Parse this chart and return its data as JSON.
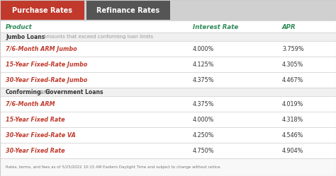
{
  "tab_active": "Purchase Rates",
  "tab_inactive": "Refinance Rates",
  "tab_active_bg": "#c0392b",
  "tab_inactive_bg": "#555555",
  "tab_text_color": "#ffffff",
  "header_product": "Product",
  "header_interest": "Interest Rate",
  "header_apr": "APR",
  "header_color": "#2e8b57",
  "section1_label": "Jumbo Loans",
  "section1_desc": "- Amounts that exceed conforming loan limits",
  "section2_label": "Conforming",
  "section2_and": " and ",
  "section2_label2": "Government Loans",
  "section_bg": "#f0f0f0",
  "row_bg_normal": "#ffffff",
  "product_color": "#c0392b",
  "footer_text": "Rates, terms, and fees as of 5/25/2022 10:15 AM Eastern Daylight Time and subject to change without notice.",
  "footer_bg": "#f8f8f8",
  "products": [
    {
      "name": "7/6-Month ARM Jumbo",
      "interest": "4.000%",
      "apr": "3.759%",
      "section": 1
    },
    {
      "name": "15-Year Fixed-Rate Jumbo",
      "interest": "4.125%",
      "apr": "4.305%",
      "section": 1
    },
    {
      "name": "30-Year Fixed-Rate Jumbo",
      "interest": "4.375%",
      "apr": "4.467%",
      "section": 1
    },
    {
      "name": "7/6-Month ARM",
      "interest": "4.375%",
      "apr": "4.019%",
      "section": 2
    },
    {
      "name": "15-Year Fixed Rate",
      "interest": "4.000%",
      "apr": "4.318%",
      "section": 2
    },
    {
      "name": "30-Year Fixed-Rate VA",
      "interest": "4.250%",
      "apr": "4.546%",
      "section": 2
    },
    {
      "name": "30-Year Fixed Rate",
      "interest": "4.750%",
      "apr": "4.904%",
      "section": 2
    }
  ],
  "border_color": "#cccccc",
  "bg_color": "#ffffff",
  "tab_bar_bg": "#d0d0d0"
}
